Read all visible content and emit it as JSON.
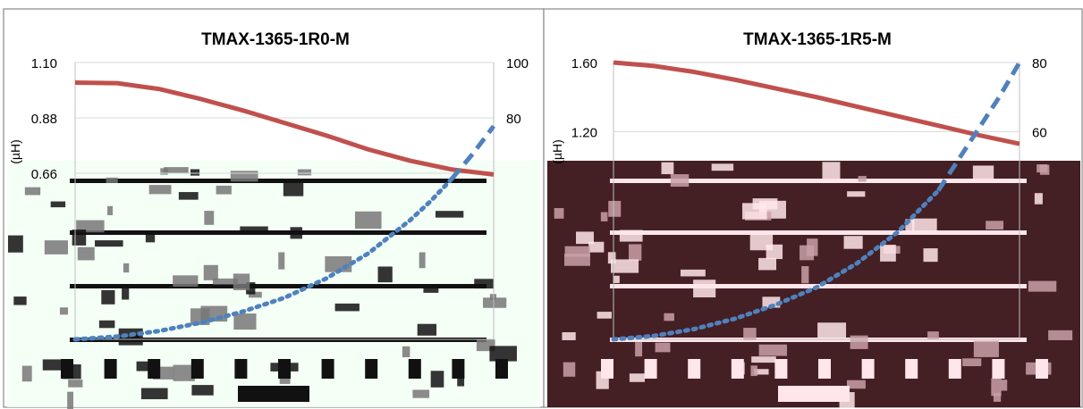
{
  "colors": {
    "inductance_line": "#c0504d",
    "temperature_line": "#4f81bd",
    "gridline": "#d9d9d9",
    "panel_border": "#888888",
    "corrupt_left_bg": "#f2fff4",
    "corrupt_right_bg": "#2a0006"
  },
  "chart_data": [
    {
      "type": "line",
      "title": "TMAX-1365-1R0-M",
      "ylabel": "(µH)",
      "yticks_left": [
        1.1,
        0.88,
        0.66
      ],
      "ylim_left": [
        0.0,
        1.1
      ],
      "yticks_right": [
        100,
        80
      ],
      "ylim_right": [
        0,
        100
      ],
      "xlim": [
        0,
        1
      ],
      "grid": true,
      "series": [
        {
          "axis": "left",
          "style": "solid",
          "color": "#c0504d",
          "x": [
            0.0,
            0.1,
            0.2,
            0.3,
            0.4,
            0.5,
            0.6,
            0.7,
            0.8,
            0.9,
            1.0
          ],
          "values": [
            1.02,
            1.018,
            0.995,
            0.955,
            0.91,
            0.86,
            0.81,
            0.755,
            0.71,
            0.675,
            0.655
          ]
        },
        {
          "axis": "right",
          "style": "solid-then-dashed",
          "color": "#4f81bd",
          "x": [
            0.0,
            0.1,
            0.2,
            0.3,
            0.4,
            0.5,
            0.6,
            0.7,
            0.8,
            0.85,
            0.9,
            0.95,
            1.0
          ],
          "values": [
            0,
            1,
            3,
            6,
            10,
            15,
            22,
            31,
            43,
            50,
            58,
            67,
            77
          ],
          "dash_from_x": 0.9
        }
      ]
    },
    {
      "type": "line",
      "title": "TMAX-1365-1R5-M",
      "ylabel": "(µH)",
      "yticks_left": [
        1.6,
        1.2
      ],
      "ylim_left": [
        0.0,
        1.6
      ],
      "yticks_right": [
        80,
        60
      ],
      "ylim_right": [
        0,
        80
      ],
      "xlim": [
        0,
        1
      ],
      "grid": true,
      "series": [
        {
          "axis": "left",
          "style": "solid",
          "color": "#c0504d",
          "x": [
            0.0,
            0.1,
            0.2,
            0.3,
            0.4,
            0.5,
            0.6,
            0.7,
            0.8,
            0.9,
            1.0
          ],
          "values": [
            1.6,
            1.58,
            1.545,
            1.5,
            1.45,
            1.4,
            1.345,
            1.29,
            1.235,
            1.18,
            1.13
          ]
        },
        {
          "axis": "right",
          "style": "solid-then-dashed",
          "color": "#4f81bd",
          "x": [
            0.0,
            0.1,
            0.2,
            0.3,
            0.4,
            0.5,
            0.6,
            0.7,
            0.8,
            0.85,
            0.9,
            0.95,
            1.0
          ],
          "values": [
            0,
            1,
            3,
            6,
            10,
            15,
            22,
            31,
            43,
            52,
            61,
            70,
            80
          ],
          "dash_from_x": 0.8
        }
      ]
    }
  ]
}
